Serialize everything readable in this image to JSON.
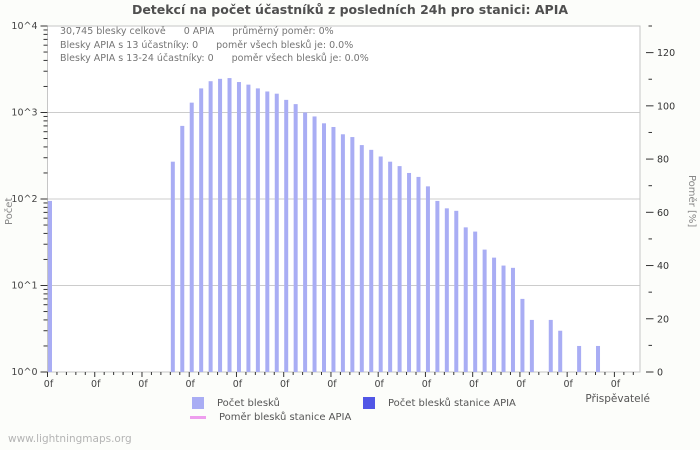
{
  "page": {
    "watermark": "www.lightningmaps.org",
    "background": "#fcfdfa"
  },
  "chart_data": {
    "type": "bar",
    "title": "Detekcí na počet účastníků z posledních 24h pro stanici: APIA",
    "stats_lines": [
      [
        "30,745 blesky celkově",
        "0 APIA",
        "průměrný poměr: 0%"
      ],
      [
        "Blesky APIA s 13 účastníky: 0",
        "poměr všech blesků je: 0.0%"
      ],
      [
        "Blesky APIA s 13-24 účastníky: 0",
        "poměr všech blesků je: 0.0%"
      ]
    ],
    "xlabel": "Přispěvatelé",
    "ylabel_left": "Počet",
    "ylabel_right": "Poměr [%]",
    "y_left_scale": "log10",
    "ylim_left": [
      1,
      10000
    ],
    "y_left_ticks": [
      "10^0",
      "10^1",
      "10^2",
      "10^3",
      "10^4"
    ],
    "ylim_right": [
      0,
      130
    ],
    "y_right_ticks": [
      0,
      20,
      40,
      60,
      80,
      100,
      120
    ],
    "y_right_minor_step": 10,
    "x_tick_label": "0f",
    "x_tick_every": 5,
    "slots": 63,
    "grid": "horizontal-decades",
    "legend_position": "bottom",
    "series": [
      {
        "name": "Počet blesků",
        "color": "#a9adf4",
        "kind": "bar",
        "values": [
          95,
          0,
          0,
          0,
          0,
          0,
          0,
          0,
          0,
          0,
          0,
          0,
          0,
          270,
          700,
          1300,
          1900,
          2300,
          2450,
          2500,
          2250,
          2100,
          1900,
          1750,
          1650,
          1400,
          1250,
          1000,
          900,
          750,
          680,
          560,
          520,
          420,
          370,
          310,
          270,
          240,
          200,
          180,
          140,
          95,
          78,
          73,
          47,
          42,
          26,
          21,
          17,
          16,
          7,
          4,
          0,
          4,
          3,
          0,
          2,
          0,
          2,
          0,
          0,
          0,
          0
        ]
      },
      {
        "name": "Počet blesků stanice APIA",
        "color": "#5156e6",
        "kind": "bar",
        "constant_value": 0
      },
      {
        "name": "Poměr blesků stanice APIA",
        "color": "#ee9eee",
        "kind": "line",
        "constant_percent": 0
      }
    ]
  }
}
